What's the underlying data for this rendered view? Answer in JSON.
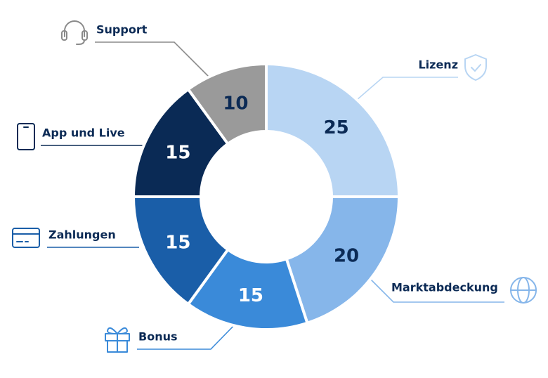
{
  "chart_data": {
    "type": "donut",
    "categories": [
      "Lizenz",
      "Marktabdeckung",
      "Bonus",
      "Zahlungen",
      "App und Live",
      "Support"
    ],
    "values": [
      25,
      20,
      15,
      15,
      15,
      10
    ],
    "colors": [
      "#b8d5f3",
      "#86b6ea",
      "#3a8ad9",
      "#1a5ea8",
      "#0a2a55",
      "#9a9a9a"
    ]
  }
}
